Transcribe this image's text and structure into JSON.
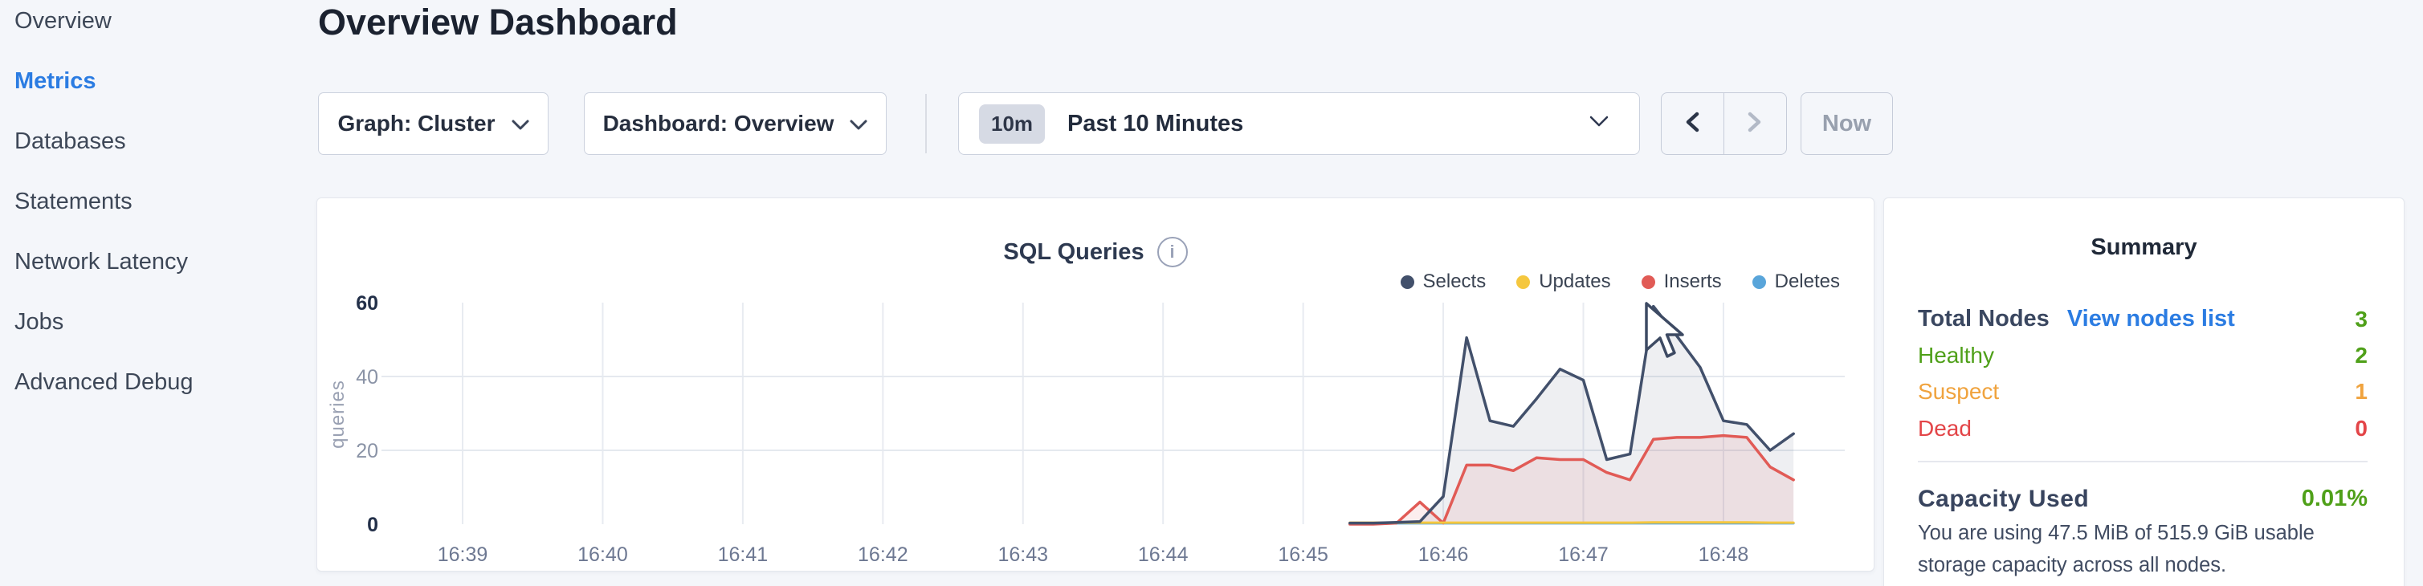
{
  "colors": {
    "page-bg": "#f4f6fa",
    "card-border": "#e4e7ed",
    "accent-blue": "#2b7ce2",
    "control-border": "#ccd2de",
    "badge-bg": "#d6dae4",
    "now-text": "#98a0ae",
    "grid": "#e8ebf1",
    "green": "#4fa019",
    "orange": "#f0a33e",
    "red": "#e34548"
  },
  "sidebar": {
    "items": [
      {
        "label": "Overview",
        "active": false
      },
      {
        "label": "Metrics",
        "active": true
      },
      {
        "label": "Databases",
        "active": false
      },
      {
        "label": "Statements",
        "active": false
      },
      {
        "label": "Network Latency",
        "active": false
      },
      {
        "label": "Jobs",
        "active": false
      },
      {
        "label": "Advanced Debug",
        "active": false
      }
    ]
  },
  "header": {
    "title": "Overview Dashboard"
  },
  "toolbar": {
    "graph_dropdown": "Graph: Cluster",
    "dashboard_dropdown": "Dashboard: Overview",
    "time_badge": "10m",
    "time_label": "Past 10 Minutes",
    "now_label": "Now"
  },
  "chart_data": {
    "type": "area",
    "title": "SQL Queries",
    "ylabel": "queries",
    "ylim": [
      0,
      60
    ],
    "yticks": [
      0,
      20,
      40,
      60
    ],
    "emphasized_yticks": [
      0,
      60
    ],
    "hgrid": [
      20,
      40
    ],
    "grid": true,
    "legend_position": "top-right",
    "x_labels": [
      "16:39",
      "16:40",
      "16:41",
      "16:42",
      "16:43",
      "16:44",
      "16:45",
      "16:46",
      "16:47",
      "16:48"
    ],
    "points_start": "16:45:20",
    "point_interval_sec": 10,
    "series": [
      {
        "name": "Selects",
        "color": "#42506b",
        "fill": "rgba(66,80,107,0.09)",
        "line_width": 3.5,
        "values": [
          0.3,
          0.3,
          0.5,
          0.7,
          7.5,
          50.5,
          28,
          26.5,
          34,
          42,
          39,
          17.5,
          19,
          59,
          51,
          42.5,
          28,
          27,
          20,
          24.5
        ]
      },
      {
        "name": "Updates",
        "color": "#f5c73e",
        "line_width": 3,
        "values": [
          0.4,
          0.4,
          0.4,
          0.4,
          0.4,
          0.4,
          0.4,
          0.4,
          0.4,
          0.4,
          0.4,
          0.4,
          0.4,
          0.5,
          0.5,
          0.5,
          0.5,
          0.5,
          0.4,
          0.4
        ]
      },
      {
        "name": "Inserts",
        "color": "#e15b56",
        "fill": "rgba(225,91,86,0.10)",
        "line_width": 3.5,
        "values": [
          0,
          0,
          0.3,
          6,
          0.3,
          16,
          16,
          14.5,
          18,
          17.5,
          17.5,
          14,
          12,
          23,
          23.5,
          23.5,
          24,
          23.5,
          15.5,
          12
        ]
      },
      {
        "name": "Deletes",
        "color": "#59a5da",
        "line_width": 3,
        "values": [
          0.25,
          0.25,
          0.25,
          0.25,
          0.25,
          0.25,
          0.25,
          0.25,
          0.25,
          0.25,
          0.25,
          0.25,
          0.25,
          0.25,
          0.25,
          0.25,
          0.25,
          0.25,
          0.25,
          0.25
        ]
      }
    ]
  },
  "summary": {
    "title": "Summary",
    "rows": [
      {
        "label": "Total Nodes",
        "link": "View nodes list",
        "value": "3",
        "value_color": "#4fa019"
      },
      {
        "label": "Healthy",
        "value": "2",
        "label_color": "#4fa019",
        "value_color": "#4fa019"
      },
      {
        "label": "Suspect",
        "value": "1",
        "label_color": "#f0a33e",
        "value_color": "#f0a33e"
      },
      {
        "label": "Dead",
        "value": "0",
        "label_color": "#e34548",
        "value_color": "#e34548"
      }
    ],
    "capacity_label": "Capacity Used",
    "capacity_value": "0.01%",
    "capacity_value_color": "#4fa019",
    "capacity_description": "You are using 47.5 MiB of 515.9 GiB usable storage capacity across all nodes."
  }
}
